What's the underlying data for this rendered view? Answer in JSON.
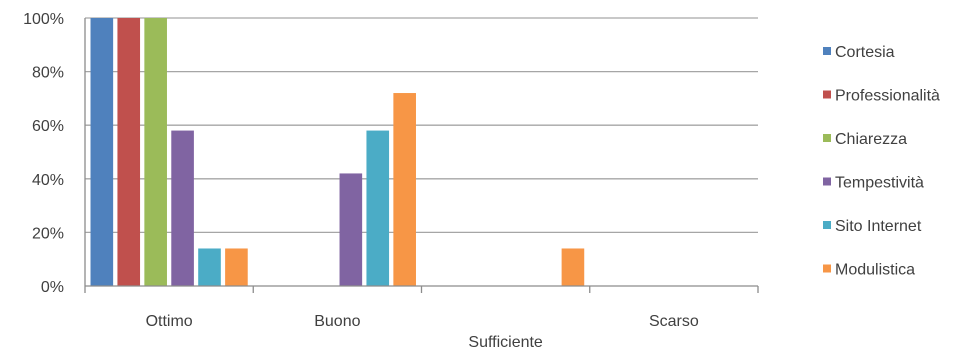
{
  "chart_data": {
    "type": "bar",
    "categories": [
      "Ottimo",
      "Buono",
      "Sufficiente",
      "Scarso"
    ],
    "series": [
      {
        "name": "Cortesia",
        "color": "#4F81BD",
        "values": [
          100,
          0,
          0,
          0
        ]
      },
      {
        "name": "Professionalità",
        "color": "#C0504D",
        "values": [
          100,
          0,
          0,
          0
        ]
      },
      {
        "name": "Chiarezza",
        "color": "#9BBB59",
        "values": [
          100,
          0,
          0,
          0
        ]
      },
      {
        "name": "Tempestività",
        "color": "#8064A2",
        "values": [
          58,
          42,
          0,
          0
        ]
      },
      {
        "name": "Sito Internet",
        "color": "#4BACC6",
        "values": [
          14,
          58,
          0,
          0
        ]
      },
      {
        "name": "Modulistica",
        "color": "#F79646",
        "values": [
          14,
          72,
          14,
          0
        ]
      }
    ],
    "yticks": [
      "0%",
      "20%",
      "40%",
      "60%",
      "80%",
      "100%"
    ],
    "ylim": [
      0,
      100
    ],
    "grid": true,
    "legend_position": "right"
  }
}
